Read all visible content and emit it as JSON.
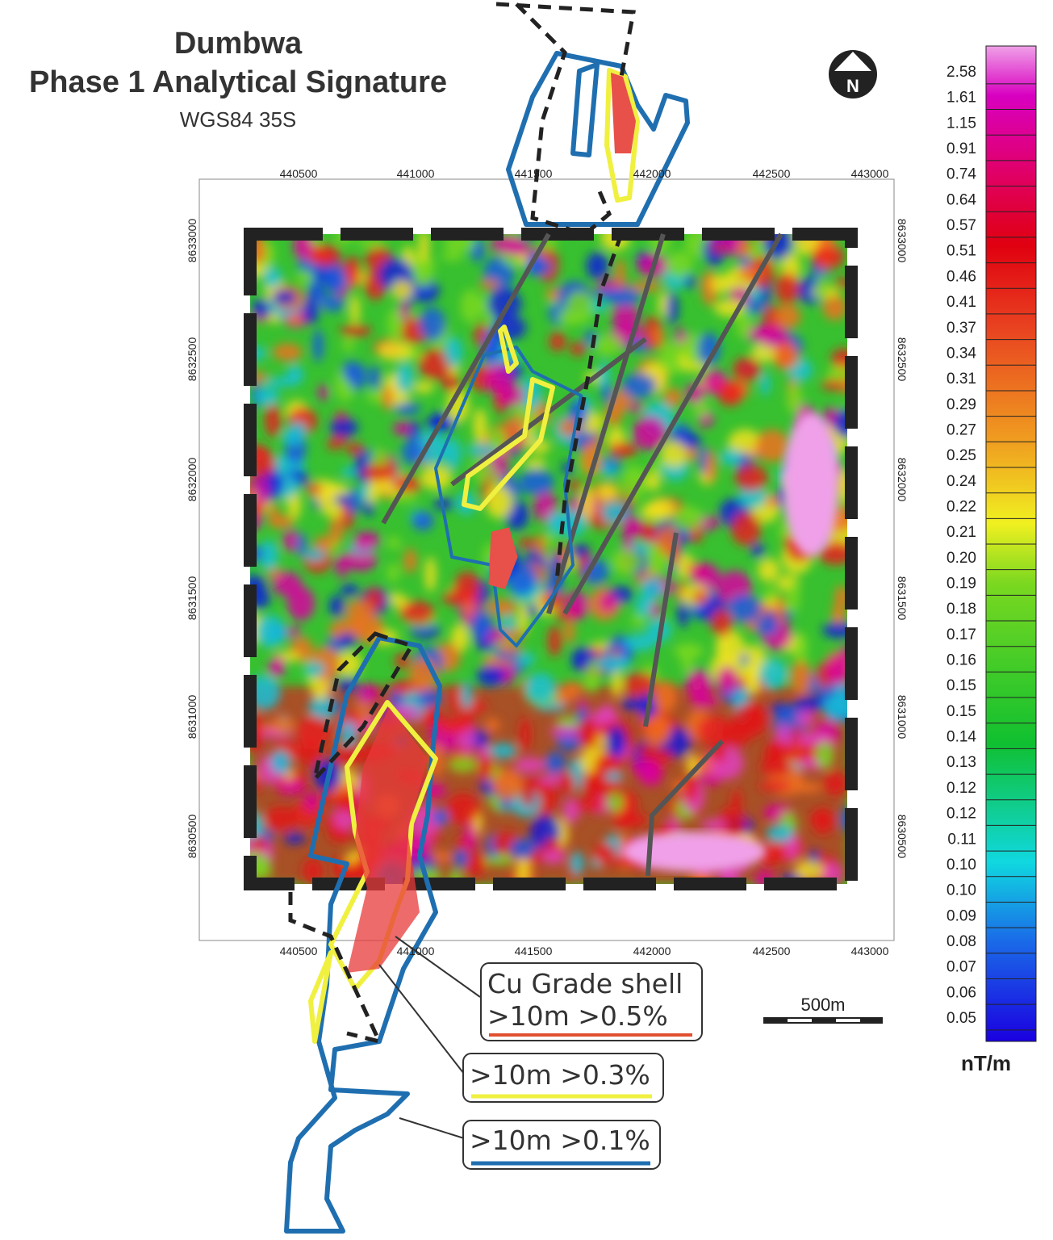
{
  "header": {
    "title": "Dumbwa",
    "subtitle": "Phase 1 Analytical Signature",
    "projection": "WGS84 35S"
  },
  "north": "N",
  "map": {
    "x_ticks": [
      "440500",
      "441000",
      "441500",
      "442000",
      "442500",
      "443000"
    ],
    "y_ticks": [
      "8633000",
      "8632500",
      "8632000",
      "8631500",
      "8631000",
      "8630500"
    ]
  },
  "colorbar": {
    "labels": [
      "2.58",
      "1.61",
      "1.15",
      "0.91",
      "0.74",
      "0.64",
      "0.57",
      "0.51",
      "0.46",
      "0.41",
      "0.37",
      "0.34",
      "0.31",
      "0.29",
      "0.27",
      "0.25",
      "0.24",
      "0.22",
      "0.21",
      "0.20",
      "0.19",
      "0.18",
      "0.17",
      "0.16",
      "0.15",
      "0.15",
      "0.14",
      "0.13",
      "0.12",
      "0.12",
      "0.11",
      "0.10",
      "0.10",
      "0.09",
      "0.08",
      "0.07",
      "0.06",
      "0.05"
    ],
    "unit": "nT/m"
  },
  "legend": {
    "title": "Cu Grade shell",
    "items": [
      ">10m >0.5%",
      ">10m >0.3%",
      ">10m >0.1%"
    ]
  },
  "scale_bar": "500m"
}
